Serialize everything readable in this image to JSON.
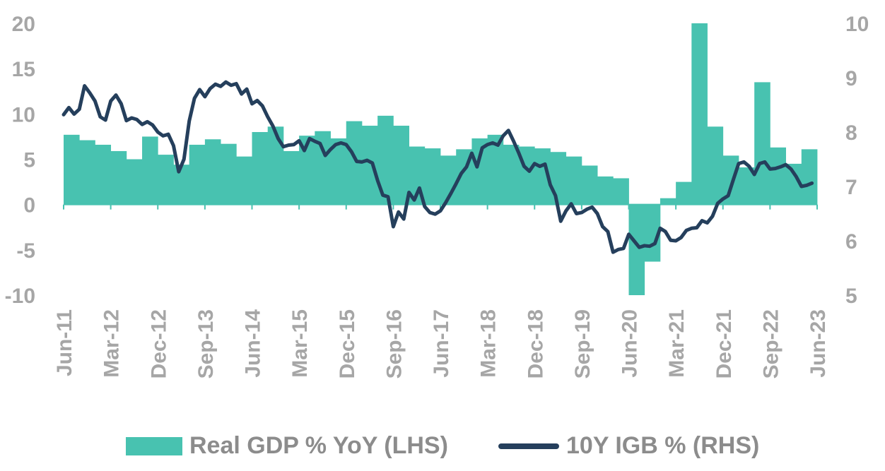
{
  "chart_data": {
    "type": "area+line",
    "colors": {
      "gdp_area": "#48c2b0",
      "igb_line": "#253f5c",
      "tick_text": "#a6a6a6",
      "legend_text": "#8c8c8c"
    },
    "x_tick_labels": [
      "Jun-11",
      "Mar-12",
      "Dec-12",
      "Sep-13",
      "Jun-14",
      "Mar-15",
      "Dec-15",
      "Sep-16",
      "Jun-17",
      "Mar-18",
      "Dec-18",
      "Sep-19",
      "Jun-20",
      "Mar-21",
      "Dec-21",
      "Sep-22",
      "Jun-23"
    ],
    "x_range": [
      "Jun-11",
      "Jun-23"
    ],
    "left_axis": {
      "label": "",
      "ticks": [
        "20",
        "15",
        "10",
        "5",
        "0",
        "-5",
        "-10"
      ],
      "range": [
        -10,
        20
      ]
    },
    "right_axis": {
      "label": "",
      "ticks": [
        "10",
        "9",
        "8",
        "7",
        "6",
        "5"
      ],
      "range": [
        5,
        10
      ]
    },
    "legend": [
      "Real GDP % YoY (LHS)",
      "10Y IGB % (RHS)"
    ],
    "series": [
      {
        "name": "Real GDP % YoY (LHS)",
        "axis": "left",
        "kind": "step-area",
        "period": "quarterly",
        "start": "Jun-11",
        "values": [
          7.7,
          7.1,
          6.6,
          5.9,
          5.0,
          7.5,
          5.5,
          4.4,
          6.6,
          7.2,
          6.7,
          5.3,
          8.0,
          8.6,
          5.9,
          7.6,
          8.1,
          7.3,
          9.2,
          8.7,
          9.8,
          8.7,
          6.4,
          6.2,
          5.4,
          6.1,
          7.3,
          7.7,
          6.6,
          6.4,
          6.2,
          5.8,
          5.3,
          4.3,
          3.1,
          2.9,
          -10.0,
          -6.3,
          0.7,
          2.5,
          20.0,
          8.6,
          5.4,
          4.1,
          13.5,
          6.3,
          4.5,
          6.1
        ]
      },
      {
        "name": "10Y IGB % (RHS)",
        "axis": "right",
        "kind": "line",
        "period": "monthly",
        "start": "Jun-11",
        "values": [
          8.32,
          8.45,
          8.33,
          8.42,
          8.85,
          8.72,
          8.57,
          8.28,
          8.22,
          8.57,
          8.68,
          8.52,
          8.21,
          8.26,
          8.23,
          8.14,
          8.19,
          8.13,
          8.0,
          7.93,
          7.96,
          7.75,
          7.27,
          7.5,
          8.2,
          8.62,
          8.78,
          8.65,
          8.8,
          8.88,
          8.84,
          8.92,
          8.86,
          8.89,
          8.7,
          8.79,
          8.52,
          8.58,
          8.48,
          8.28,
          8.11,
          7.88,
          7.73,
          7.76,
          7.77,
          7.84,
          7.66,
          7.88,
          7.83,
          7.79,
          7.57,
          7.68,
          7.77,
          7.8,
          7.77,
          7.64,
          7.46,
          7.45,
          7.48,
          7.43,
          7.11,
          6.84,
          6.81,
          6.26,
          6.53,
          6.4,
          6.89,
          6.75,
          6.97,
          6.63,
          6.52,
          6.49,
          6.55,
          6.7,
          6.87,
          7.05,
          7.24,
          7.36,
          7.61,
          7.36,
          7.71,
          7.77,
          7.8,
          7.76,
          7.93,
          8.03,
          7.83,
          7.61,
          7.37,
          7.28,
          7.42,
          7.37,
          7.41,
          7.03,
          6.83,
          6.36,
          6.55,
          6.68,
          6.5,
          6.52,
          6.58,
          6.62,
          6.5,
          6.26,
          6.17,
          5.79,
          5.84,
          5.86,
          6.12,
          6.0,
          5.88,
          5.91,
          5.9,
          5.95,
          6.23,
          6.17,
          6.01,
          6.0,
          6.06,
          6.19,
          6.23,
          6.24,
          6.37,
          6.33,
          6.45,
          6.69,
          6.77,
          6.83,
          7.13,
          7.42,
          7.45,
          7.37,
          7.22,
          7.42,
          7.45,
          7.32,
          7.33,
          7.36,
          7.4,
          7.32,
          7.18,
          7.0,
          7.02,
          7.06
        ]
      }
    ]
  }
}
